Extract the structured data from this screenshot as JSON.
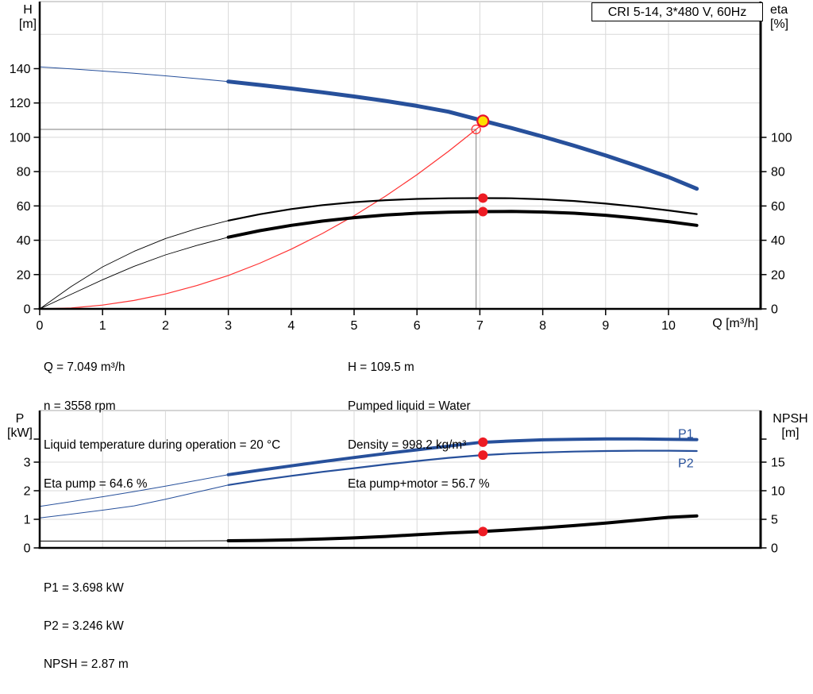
{
  "header": {
    "pump_model": "CRI 5-14, 3*480 V, 60Hz"
  },
  "colors": {
    "blue": "#27509B",
    "black": "#000000",
    "red": "#ff3232",
    "dot": "#ed1c24",
    "yellow": "#ffe000",
    "ring": "#e8112d"
  },
  "info": {
    "top_left": [
      "Q = 7.049 m³/h",
      "n = 3558 rpm",
      "Liquid temperature during operation = 20 °C",
      "Eta pump = 64.6 %"
    ],
    "top_right": [
      "H = 109.5 m",
      "Pumped liquid = Water",
      "Density = 998.2 kg/m³",
      "Eta pump+motor = 56.7 %"
    ],
    "bottom": [
      "P1 = 3.698 kW",
      "P2 = 3.246 kW",
      "NPSH = 2.87 m"
    ]
  },
  "chart_data": [
    {
      "name": "head-efficiency-chart",
      "type": "line",
      "title": "CRI 5-14, 3*480 V, 60Hz",
      "xlabel": "Q [m³/h]",
      "x_ticks": [
        0,
        1,
        2,
        3,
        4,
        5,
        6,
        7,
        8,
        9,
        10
      ],
      "x_max": 11.46,
      "y_left": {
        "label": "H\n[m]",
        "ticks": [
          0,
          20,
          40,
          60,
          80,
          100,
          120,
          140
        ],
        "grid": [
          20,
          40,
          60,
          80,
          100,
          120,
          140,
          160
        ],
        "max": 179
      },
      "y_right": {
        "label": "eta\n[%]",
        "ticks": [
          0,
          20,
          40,
          60,
          80,
          100
        ]
      },
      "series": [
        {
          "name": "system-curve",
          "axis": "left",
          "color": "red",
          "width": 1.2,
          "points": [
            [
              0,
              0
            ],
            [
              0.5,
              0.5
            ],
            [
              1,
              2.2
            ],
            [
              1.5,
              4.9
            ],
            [
              2,
              8.7
            ],
            [
              2.5,
              13.6
            ],
            [
              3,
              19.5
            ],
            [
              3.5,
              26.6
            ],
            [
              4,
              34.8
            ],
            [
              4.5,
              44
            ],
            [
              5,
              54.3
            ],
            [
              5.5,
              65.7
            ],
            [
              6,
              78.2
            ],
            [
              6.5,
              91.8
            ],
            [
              6.94,
              104.6
            ],
            [
              7.08,
              108.9
            ]
          ]
        },
        {
          "name": "eta-pump",
          "axis": "right",
          "color": "black",
          "width": 2.2,
          "thin_until": 3,
          "thin_width": 0.9,
          "points": [
            [
              0,
              0
            ],
            [
              0.5,
              13
            ],
            [
              1,
              24.5
            ],
            [
              1.5,
              33.5
            ],
            [
              2,
              41
            ],
            [
              2.5,
              46.8
            ],
            [
              3,
              51.5
            ],
            [
              3.5,
              55.2
            ],
            [
              4,
              58.2
            ],
            [
              4.5,
              60.5
            ],
            [
              5,
              62.2
            ],
            [
              5.5,
              63.4
            ],
            [
              6,
              64.1
            ],
            [
              6.5,
              64.5
            ],
            [
              7,
              64.6
            ],
            [
              7.5,
              64.5
            ],
            [
              8,
              63.9
            ],
            [
              8.5,
              62.9
            ],
            [
              9,
              61.4
            ],
            [
              9.5,
              59.6
            ],
            [
              10,
              57.4
            ],
            [
              10.45,
              55.3
            ]
          ]
        },
        {
          "name": "eta-pump-motor",
          "axis": "right",
          "color": "black",
          "width": 4,
          "thin_until": 3,
          "thin_width": 0.9,
          "points": [
            [
              0,
              0
            ],
            [
              0.5,
              8.5
            ],
            [
              1,
              17
            ],
            [
              1.5,
              24.8
            ],
            [
              2,
              31.5
            ],
            [
              2.5,
              37
            ],
            [
              3,
              41.8
            ],
            [
              3.5,
              45.6
            ],
            [
              4,
              48.7
            ],
            [
              4.5,
              51.2
            ],
            [
              5,
              53.2
            ],
            [
              5.5,
              54.7
            ],
            [
              6,
              55.8
            ],
            [
              6.5,
              56.4
            ],
            [
              7,
              56.7
            ],
            [
              7.5,
              56.8
            ],
            [
              8,
              56.5
            ],
            [
              8.5,
              55.8
            ],
            [
              9,
              54.6
            ],
            [
              9.5,
              52.9
            ],
            [
              10,
              50.9
            ],
            [
              10.45,
              48.7
            ]
          ]
        },
        {
          "name": "head",
          "axis": "left",
          "color": "blue",
          "width": 5,
          "thin_until": 3,
          "thin_width": 1,
          "points": [
            [
              0,
              141
            ],
            [
              0.5,
              139.9
            ],
            [
              1,
              138.6
            ],
            [
              1.5,
              137.3
            ],
            [
              2,
              135.8
            ],
            [
              2.5,
              134.2
            ],
            [
              3,
              132.5
            ],
            [
              3.5,
              130.5
            ],
            [
              4,
              128.4
            ],
            [
              4.5,
              126.2
            ],
            [
              5,
              123.8
            ],
            [
              5.5,
              121.2
            ],
            [
              6,
              118.3
            ],
            [
              6.5,
              114.9
            ],
            [
              7,
              110.1
            ],
            [
              7.5,
              105.4
            ],
            [
              8,
              100.4
            ],
            [
              8.5,
              95.1
            ],
            [
              9,
              89.4
            ],
            [
              9.5,
              83.3
            ],
            [
              10,
              76.8
            ],
            [
              10.45,
              70
            ]
          ]
        }
      ],
      "markers": {
        "requested_point": {
          "q": 6.94,
          "value": 104.6,
          "axis": "left",
          "crosshair": true
        },
        "duty_point": {
          "q": 7.049,
          "value": 109.5,
          "axis": "left"
        },
        "dots": [
          {
            "q": 7.049,
            "value": 64.6,
            "axis": "right"
          },
          {
            "q": 7.049,
            "value": 56.7,
            "axis": "right"
          }
        ]
      }
    },
    {
      "name": "power-npsh-chart",
      "type": "line",
      "xlabel": "",
      "x_ticks": [
        1,
        2,
        3,
        4,
        5,
        6,
        7,
        8,
        9,
        10
      ],
      "y_left": {
        "label": "P\n[kW]",
        "ticks": [
          0,
          1,
          2,
          3
        ],
        "grid": [
          1,
          2,
          3
        ]
      },
      "y_right": {
        "label": "NPSH\n[m]",
        "ticks": [
          0,
          5,
          10,
          15
        ]
      },
      "series": [
        {
          "name": "p1",
          "label": "P1",
          "label_dy": -2,
          "axis": "left",
          "color": "blue",
          "width": 4,
          "thin_until": 3,
          "thin_width": 1,
          "points": [
            [
              0,
              1.45
            ],
            [
              0.5,
              1.62
            ],
            [
              1,
              1.79
            ],
            [
              1.5,
              1.97
            ],
            [
              2,
              2.16
            ],
            [
              2.5,
              2.36
            ],
            [
              3,
              2.56
            ],
            [
              3.5,
              2.72
            ],
            [
              4,
              2.87
            ],
            [
              4.5,
              3.02
            ],
            [
              5,
              3.16
            ],
            [
              5.5,
              3.3
            ],
            [
              6,
              3.43
            ],
            [
              6.5,
              3.56
            ],
            [
              7,
              3.69
            ],
            [
              7.5,
              3.74
            ],
            [
              8,
              3.78
            ],
            [
              8.5,
              3.8
            ],
            [
              9,
              3.81
            ],
            [
              9.5,
              3.81
            ],
            [
              10,
              3.8
            ],
            [
              10.45,
              3.79
            ]
          ]
        },
        {
          "name": "p2",
          "label": "P2",
          "label_dy": 20.5,
          "axis": "left",
          "color": "blue",
          "width": 2.2,
          "thin_until": 3,
          "thin_width": 1,
          "points": [
            [
              0,
              1.05
            ],
            [
              0.5,
              1.18
            ],
            [
              1,
              1.32
            ],
            [
              1.5,
              1.47
            ],
            [
              2,
              1.7
            ],
            [
              2.5,
              1.95
            ],
            [
              3,
              2.2
            ],
            [
              3.5,
              2.37
            ],
            [
              4,
              2.52
            ],
            [
              4.5,
              2.66
            ],
            [
              5,
              2.79
            ],
            [
              5.5,
              2.92
            ],
            [
              6,
              3.04
            ],
            [
              6.5,
              3.15
            ],
            [
              7,
              3.24
            ],
            [
              7.5,
              3.3
            ],
            [
              8,
              3.34
            ],
            [
              8.5,
              3.37
            ],
            [
              9,
              3.39
            ],
            [
              9.5,
              3.4
            ],
            [
              10,
              3.4
            ],
            [
              10.45,
              3.39
            ]
          ]
        },
        {
          "name": "npsh",
          "axis": "right",
          "color": "black",
          "width": 4,
          "thin_until": 3,
          "thin_width": 1,
          "points": [
            [
              0,
              1.2
            ],
            [
              1,
              1.2
            ],
            [
              2,
              1.2
            ],
            [
              3,
              1.25
            ],
            [
              3.5,
              1.3
            ],
            [
              4,
              1.4
            ],
            [
              4.5,
              1.55
            ],
            [
              5,
              1.75
            ],
            [
              5.5,
              2
            ],
            [
              6,
              2.3
            ],
            [
              6.5,
              2.6
            ],
            [
              7,
              2.85
            ],
            [
              7.5,
              3.15
            ],
            [
              8,
              3.5
            ],
            [
              8.5,
              3.9
            ],
            [
              9,
              4.35
            ],
            [
              9.5,
              4.85
            ],
            [
              10,
              5.35
            ],
            [
              10.45,
              5.6
            ]
          ]
        }
      ],
      "markers": {
        "dots": [
          {
            "q": 7.049,
            "value": 3.698,
            "axis": "left"
          },
          {
            "q": 7.049,
            "value": 3.246,
            "axis": "left"
          },
          {
            "q": 7.049,
            "value": 2.87,
            "axis": "right"
          }
        ]
      }
    }
  ]
}
